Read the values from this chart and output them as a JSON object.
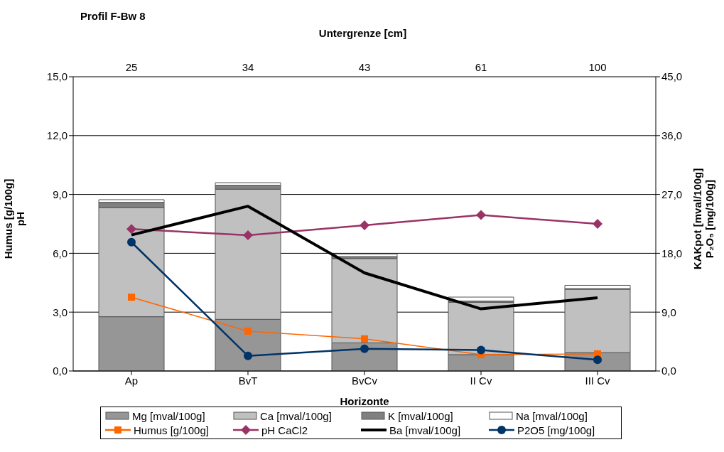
{
  "chart_data": {
    "type": "bar",
    "title": "Profil F-Bw 8",
    "xlabel": "Horizonte",
    "x2label": "Untergrenze [cm]",
    "ylabel": "Humus [g/100g]\npH",
    "y2label": "KAKpot [mval/100g]\nP₂O₅ [mg/100g]",
    "categories": [
      "Ap",
      "BvT",
      "BvCv",
      "II Cv",
      "III Cv"
    ],
    "stacked": true,
    "series": [
      {
        "name": "Mg [mval/100g]",
        "axis": "y2",
        "color": "#969696",
        "values": [
          8.3,
          7.9,
          4.3,
          2.5,
          2.8
        ]
      },
      {
        "name": "Ca [mval/100g]",
        "axis": "y2",
        "color": "#c0c0c0",
        "values": [
          16.7,
          19.9,
          12.9,
          8.0,
          9.7
        ]
      },
      {
        "name": "K [mval/100g]",
        "axis": "y2",
        "color": "#808080",
        "values": [
          0.8,
          0.6,
          0.3,
          0.2,
          0.1
        ]
      },
      {
        "name": "Na [mval/100g]",
        "axis": "y2",
        "color": "#ffffff",
        "values": [
          0.4,
          0.4,
          0.4,
          0.6,
          0.5
        ]
      },
      {
        "name": "Humus [g/100g]",
        "type": "line",
        "axis": "y",
        "color": "#ff6600",
        "marker": "square",
        "values": [
          3.76,
          2.03,
          1.64,
          0.83,
          0.87
        ]
      },
      {
        "name": "pH CaCl2",
        "type": "line",
        "axis": "y",
        "color": "#993366",
        "marker": "diamond",
        "values": [
          7.24,
          6.92,
          7.43,
          7.95,
          7.5
        ]
      },
      {
        "name": "Ba [mval/100g]",
        "type": "line",
        "axis": "y2",
        "color": "#000000",
        "marker": "none",
        "values": [
          20.8,
          25.2,
          15.0,
          9.5,
          11.2
        ]
      },
      {
        "name": "P2O5 [mg/100g]",
        "type": "line",
        "axis": "y2",
        "color": "#003366",
        "marker": "circle",
        "values": [
          19.7,
          2.3,
          3.4,
          3.2,
          1.7
        ]
      }
    ],
    "ylim": [
      0,
      15
    ],
    "yticks": [
      {
        "value": 0,
        "label": "0,0"
      },
      {
        "value": 3,
        "label": "3,0"
      },
      {
        "value": 6,
        "label": "6,0"
      },
      {
        "value": 9,
        "label": "9,0"
      },
      {
        "value": 12,
        "label": "12,0"
      },
      {
        "value": 15,
        "label": "15,0"
      }
    ],
    "y2lim": [
      0,
      45
    ],
    "y2ticks": [
      {
        "value": 0,
        "label": "0,0"
      },
      {
        "value": 9,
        "label": "9,0"
      },
      {
        "value": 18,
        "label": "18,0"
      },
      {
        "value": 27,
        "label": "27,0"
      },
      {
        "value": 36,
        "label": "36,0"
      },
      {
        "value": 45,
        "label": "45,0"
      }
    ],
    "annotations": [
      "25",
      "34",
      "43",
      "61",
      "100"
    ],
    "grid": "y",
    "legend": "bottom"
  }
}
